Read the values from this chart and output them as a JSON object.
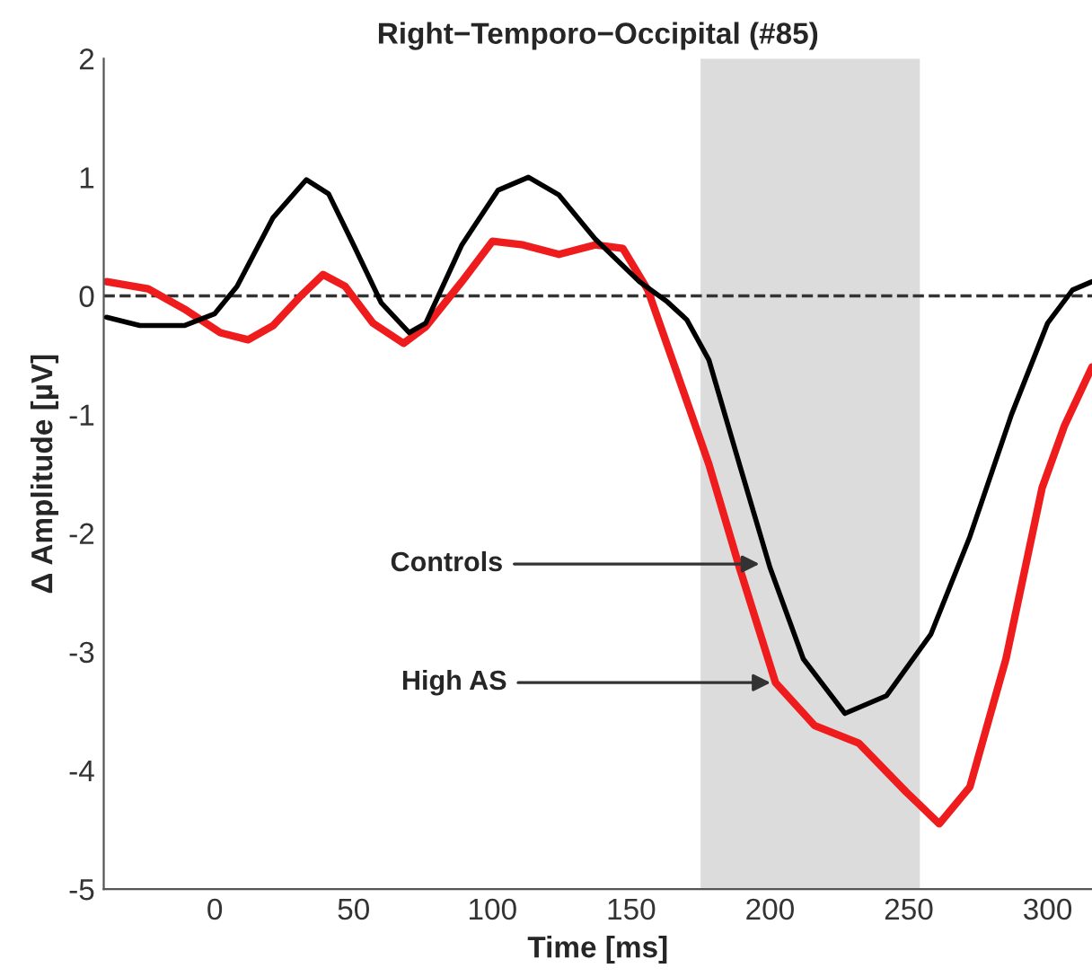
{
  "chart_data": {
    "type": "line",
    "title": "Right−Temporo−Occipital (#85)",
    "xlabel": "Time [ms]",
    "ylabel": "Δ Amplitude [µV]",
    "xlim": [
      -40,
      316
    ],
    "ylim": [
      -5,
      2
    ],
    "xticks": [
      0,
      50,
      100,
      150,
      200,
      250,
      300
    ],
    "yticks": [
      -5,
      -4,
      -3,
      -2,
      -1,
      0,
      1,
      2
    ],
    "grid": false,
    "legend": false,
    "line_style": "solid",
    "marker": "none",
    "ref_lines": [
      {
        "axis": "y",
        "value": 0,
        "color": "#333333",
        "line_style": "dashed"
      }
    ],
    "bands": [
      {
        "axis": "x",
        "from": 175,
        "to": 254,
        "color": "#dcdcdc"
      }
    ],
    "annotations": [
      {
        "text": "Controls",
        "x": 198,
        "y": -2.26
      },
      {
        "text": "High AS",
        "x": 202,
        "y": -3.26
      }
    ],
    "series": [
      {
        "color": "#000000",
        "x": [
          -39,
          -27,
          -11,
          0,
          8,
          21,
          33,
          41,
          50,
          60,
          70,
          76,
          89,
          102,
          113,
          124,
          137,
          153,
          163,
          170,
          178,
          189,
          200,
          212,
          227,
          242,
          258,
          272,
          287,
          300,
          309,
          316
        ],
        "values": [
          -0.18,
          -0.25,
          -0.25,
          -0.15,
          0.08,
          0.66,
          0.98,
          0.86,
          0.43,
          -0.06,
          -0.31,
          -0.23,
          0.43,
          0.89,
          1.0,
          0.85,
          0.48,
          0.12,
          -0.05,
          -0.2,
          -0.54,
          -1.42,
          -2.29,
          -3.06,
          -3.52,
          -3.37,
          -2.85,
          -2.03,
          -1.0,
          -0.23,
          0.05,
          0.12
        ]
      },
      {
        "color": "#ee1c1c",
        "x": [
          -39,
          -24,
          -11,
          2,
          12,
          21,
          31,
          39,
          47,
          57,
          68,
          76,
          89,
          100,
          111,
          124,
          137,
          147,
          156,
          165,
          178,
          189,
          202,
          216,
          232,
          249,
          261,
          272,
          285,
          298,
          306,
          316
        ],
        "values": [
          0.12,
          0.06,
          -0.11,
          -0.31,
          -0.37,
          -0.25,
          0,
          0.18,
          0.08,
          -0.23,
          -0.4,
          -0.26,
          0.12,
          0.46,
          0.43,
          0.35,
          0.43,
          0.4,
          0.05,
          -0.55,
          -1.42,
          -2.29,
          -3.26,
          -3.62,
          -3.77,
          -4.18,
          -4.45,
          -4.14,
          -3.06,
          -1.62,
          -1.1,
          -0.6
        ]
      }
    ]
  }
}
